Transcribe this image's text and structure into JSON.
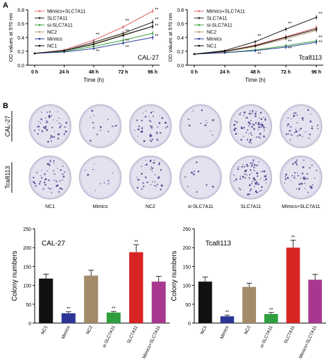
{
  "panel_labels": [
    "A",
    "B"
  ],
  "chart_data": [
    {
      "type": "line",
      "cell_line": "CAL-27",
      "ylabel": "OD values at 570 nm",
      "xlabel": "Time (h)",
      "x": [
        "0 h",
        "24 h",
        "48 h",
        "72 h",
        "96 h"
      ],
      "ylim": [
        0.0,
        0.8
      ],
      "yticks": [
        "0.0",
        "0.2",
        "0.4",
        "0.6",
        "0.8"
      ],
      "legend_position": "top-left",
      "series": [
        {
          "name": "Mimics+SLC7A11",
          "color": "#e06a6a",
          "values": [
            0.17,
            0.22,
            0.36,
            0.55,
            0.78
          ],
          "sig": "**"
        },
        {
          "name": "SLC7A11",
          "color": "#222222",
          "values": [
            0.17,
            0.21,
            0.33,
            0.46,
            0.62
          ],
          "sig": "**"
        },
        {
          "name": "si-SLC7A11",
          "color": "#3aa13a",
          "values": [
            0.17,
            0.2,
            0.27,
            0.36,
            0.46
          ],
          "sig": "**"
        },
        {
          "name": "NC2",
          "color": "#b59b73",
          "values": [
            0.17,
            0.21,
            0.31,
            0.44,
            0.56
          ],
          "sig": ""
        },
        {
          "name": "Mimics",
          "color": "#2b3d9a",
          "values": [
            0.17,
            0.19,
            0.24,
            0.32,
            0.4
          ],
          "sig": "**"
        },
        {
          "name": "NC1",
          "color": "#111111",
          "values": [
            0.17,
            0.21,
            0.3,
            0.43,
            0.56
          ],
          "sig": ""
        }
      ],
      "sig_marks": [
        {
          "x": "48 h",
          "y": 0.42,
          "text": "**"
        },
        {
          "x": "48 h",
          "y": 0.18,
          "text": "**"
        },
        {
          "x": "72 h",
          "y": 0.62,
          "text": "**"
        },
        {
          "x": "72 h",
          "y": 0.47,
          "text": "**"
        },
        {
          "x": "72 h",
          "y": 0.33,
          "text": "**"
        },
        {
          "x": "72 h",
          "y": 0.24,
          "text": "**"
        },
        {
          "x": "96 h",
          "y": 0.78,
          "text": "**"
        },
        {
          "x": "96 h",
          "y": 0.64,
          "text": "**"
        },
        {
          "x": "96 h",
          "y": 0.55,
          "text": "**"
        },
        {
          "x": "96 h",
          "y": 0.4,
          "text": "**"
        }
      ]
    },
    {
      "type": "line",
      "cell_line": "Tca8113",
      "ylabel": "OD values at 570 nm",
      "xlabel": "Time (h)",
      "x": [
        "0 h",
        "24 h",
        "48 h",
        "72 h",
        "96 h"
      ],
      "ylim": [
        0.0,
        0.8
      ],
      "yticks": [
        "0.0",
        "0.2",
        "0.4",
        "0.6",
        "0.8"
      ],
      "legend_position": "top-left",
      "series": [
        {
          "name": "Mimics+SLC7A11",
          "color": "#e06a6a",
          "values": [
            0.16,
            0.2,
            0.29,
            0.41,
            0.54
          ],
          "sig": ""
        },
        {
          "name": "SLC7A11",
          "color": "#222222",
          "values": [
            0.16,
            0.21,
            0.34,
            0.52,
            0.69
          ],
          "sig": "**"
        },
        {
          "name": "si-SLC7A11",
          "color": "#3aa13a",
          "values": [
            0.16,
            0.18,
            0.22,
            0.28,
            0.35
          ],
          "sig": "**"
        },
        {
          "name": "NC2",
          "color": "#b59b73",
          "values": [
            0.16,
            0.19,
            0.27,
            0.38,
            0.5
          ],
          "sig": ""
        },
        {
          "name": "Mimics",
          "color": "#2b3d9a",
          "values": [
            0.16,
            0.18,
            0.21,
            0.26,
            0.33
          ],
          "sig": "**"
        },
        {
          "name": "NC1",
          "color": "#111111",
          "values": [
            0.16,
            0.2,
            0.28,
            0.4,
            0.52
          ],
          "sig": ""
        }
      ],
      "sig_marks": [
        {
          "x": "48 h",
          "y": 0.4,
          "text": "**"
        },
        {
          "x": "48 h",
          "y": 0.14,
          "text": "**"
        },
        {
          "x": "72 h",
          "y": 0.58,
          "text": "**"
        },
        {
          "x": "72 h",
          "y": 0.32,
          "text": "**"
        },
        {
          "x": "72 h",
          "y": 0.22,
          "text": "**"
        },
        {
          "x": "96 h",
          "y": 0.72,
          "text": "**"
        },
        {
          "x": "96 h",
          "y": 0.38,
          "text": "**"
        },
        {
          "x": "96 h",
          "y": 0.31,
          "text": "**"
        }
      ]
    },
    {
      "type": "bar",
      "cell_line": "CAL-27",
      "ylabel": "Colony  numbers",
      "categories": [
        "NC1",
        "Mimics",
        "NC2",
        "si-SLC7A11",
        "SLC7A11",
        "Mimics+SLC7A11"
      ],
      "values": [
        118,
        26,
        126,
        28,
        188,
        110
      ],
      "errors": [
        12,
        4,
        14,
        3,
        20,
        14
      ],
      "sig": [
        "",
        "**",
        "",
        "**",
        "**",
        ""
      ],
      "colors": [
        "#111111",
        "#2b3596",
        "#a38b6a",
        "#2f9e3f",
        "#d92424",
        "#a8388f"
      ],
      "ylim": [
        0,
        250
      ],
      "yticks": [
        "0",
        "50",
        "100",
        "150",
        "200",
        "250"
      ]
    },
    {
      "type": "bar",
      "cell_line": "Tca8113",
      "ylabel": "Colony  numbers",
      "categories": [
        "NC1",
        "Mimics",
        "NC2",
        "si-SLC7A11",
        "SLC7A11",
        "Mimics+SLC7A11"
      ],
      "values": [
        110,
        18,
        96,
        24,
        200,
        115
      ],
      "errors": [
        12,
        3,
        10,
        4,
        20,
        14
      ],
      "sig": [
        "",
        "**",
        "",
        "**",
        "**",
        ""
      ],
      "colors": [
        "#111111",
        "#2b3596",
        "#a38b6a",
        "#2f9e3f",
        "#d92424",
        "#a8388f"
      ],
      "ylim": [
        0,
        250
      ],
      "yticks": [
        "0",
        "50",
        "100",
        "150",
        "200",
        "250"
      ]
    }
  ],
  "dish_panel": {
    "rows": [
      "CAL-27",
      "Tca8113"
    ],
    "columns": [
      "NC1",
      "Mimics",
      "NC2",
      "si-SLC7A11",
      "SLC7A11",
      "Mimics+SLC7A11"
    ],
    "colony_density": [
      [
        0.55,
        0.15,
        0.5,
        0.12,
        0.85,
        0.45
      ],
      [
        0.55,
        0.12,
        0.45,
        0.12,
        0.9,
        0.5
      ]
    ],
    "dish_fill": "#d9d6e8",
    "colony_color": "#4a3f8c"
  }
}
